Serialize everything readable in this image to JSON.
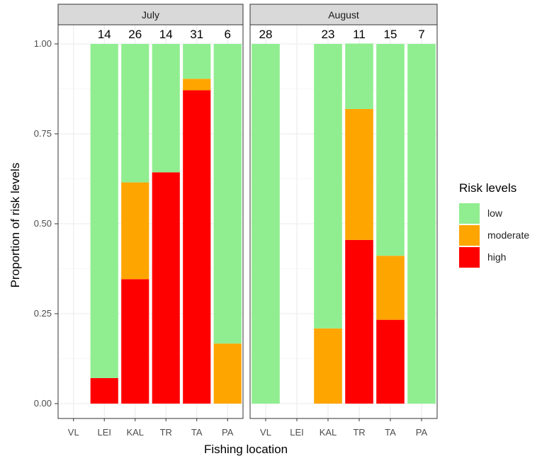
{
  "chart_data": {
    "type": "bar",
    "stacked": true,
    "xlabel": "Fishing location",
    "ylabel": "Proportion of risk levels",
    "ylim": [
      0,
      1
    ],
    "yticks": [
      "0.00",
      "0.25",
      "0.50",
      "0.75",
      "1.00"
    ],
    "categories": [
      "VL",
      "LEI",
      "KAL",
      "TR",
      "TA",
      "PA"
    ],
    "legend": {
      "title": "Risk levels",
      "position": "right",
      "items": [
        {
          "key": "low",
          "label": "low",
          "color": "#90EE90"
        },
        {
          "key": "moderate",
          "label": "moderate",
          "color": "#FFA500"
        },
        {
          "key": "high",
          "label": "high",
          "color": "#FF0000"
        }
      ]
    },
    "grid": true,
    "panels": [
      {
        "title": "July",
        "counts": [
          "",
          "14",
          "26",
          "14",
          "31",
          "6"
        ],
        "series": [
          {
            "key": "high",
            "values": [
              null,
              0.071,
              0.346,
              0.643,
              0.871,
              0
            ]
          },
          {
            "key": "moderate",
            "values": [
              null,
              0,
              0.269,
              0,
              0.032,
              0.167
            ]
          },
          {
            "key": "low",
            "values": [
              null,
              0.929,
              0.385,
              0.357,
              0.097,
              0.833
            ]
          }
        ]
      },
      {
        "title": "August",
        "counts": [
          "28",
          "",
          "23",
          "11",
          "15",
          "7"
        ],
        "series": [
          {
            "key": "high",
            "values": [
              0,
              null,
              0,
              0.455,
              0.233,
              0
            ]
          },
          {
            "key": "moderate",
            "values": [
              0,
              null,
              0.209,
              0.364,
              0.178,
              0
            ]
          },
          {
            "key": "low",
            "values": [
              1,
              null,
              0.791,
              0.182,
              0.589,
              1
            ]
          }
        ]
      }
    ]
  }
}
